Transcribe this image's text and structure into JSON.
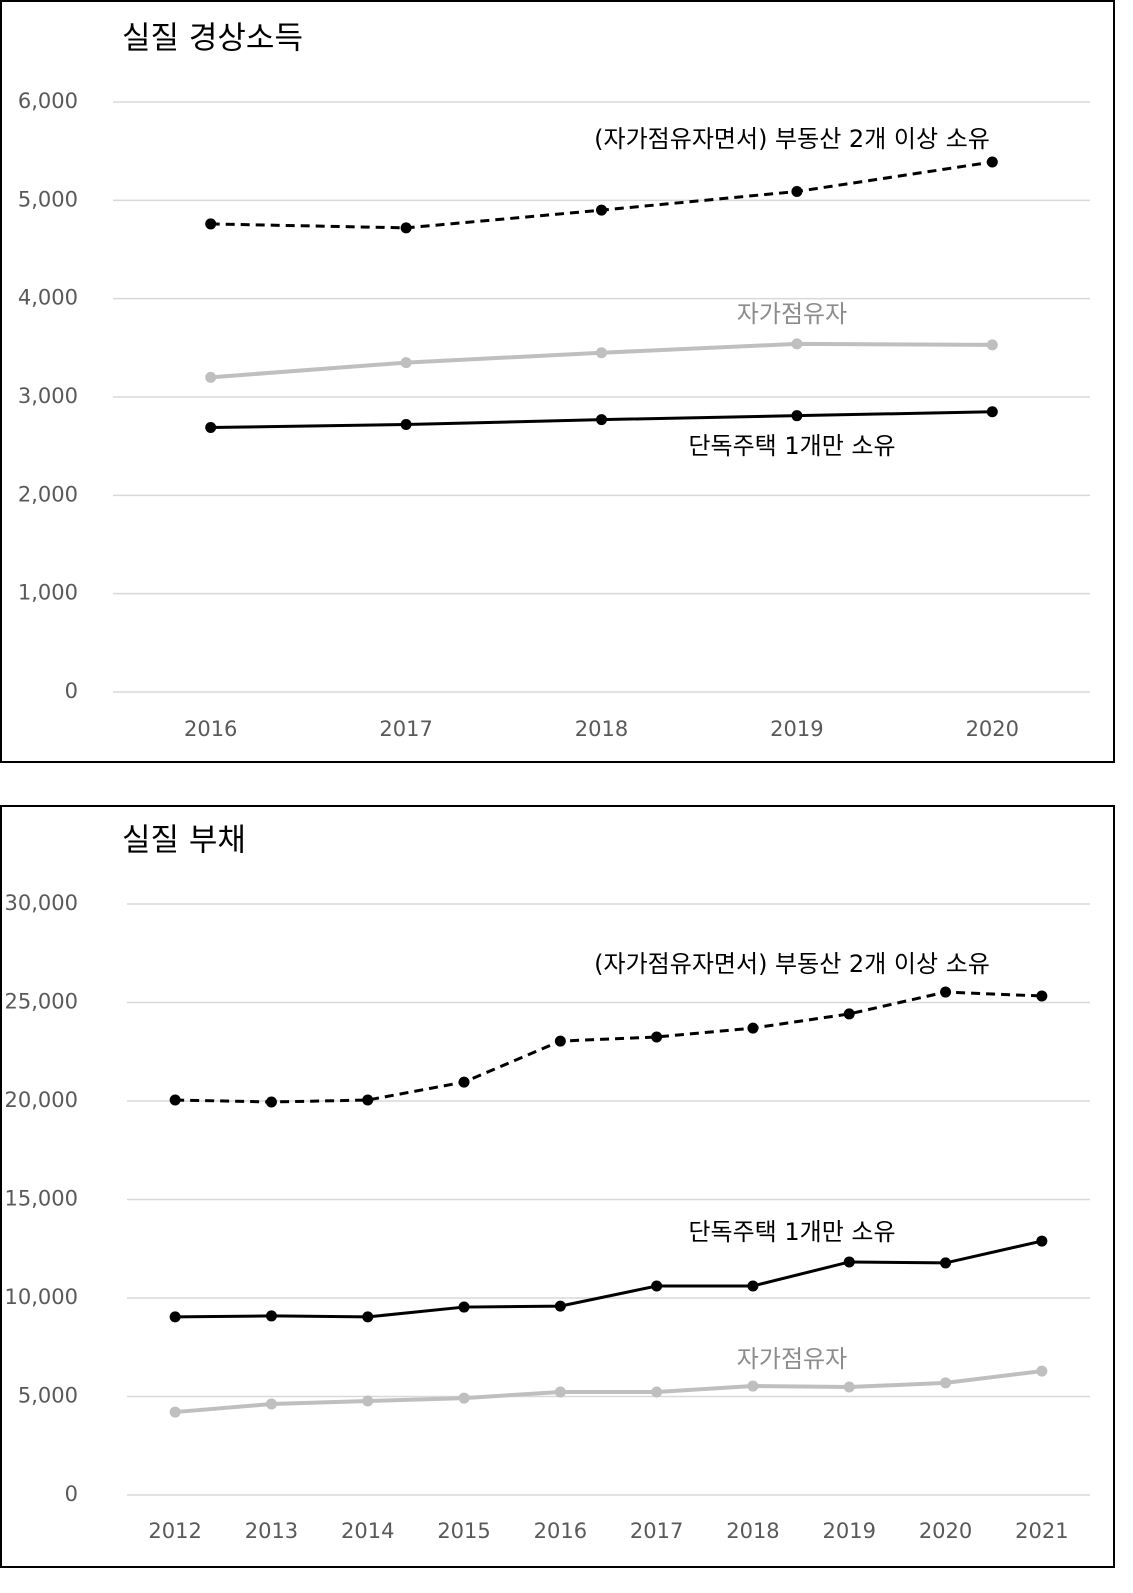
{
  "chart_data": [
    {
      "type": "line",
      "title": "실질 경상소득",
      "categories": [
        "2016",
        "2017",
        "2018",
        "2019",
        "2020"
      ],
      "series": [
        {
          "name": "(자가점유자면서) 부동산 2개 이상 소유",
          "color": "#000000",
          "line_style": "dashed",
          "values": [
            4760,
            4720,
            4900,
            5090,
            5390
          ]
        },
        {
          "name": "자가점유자",
          "color": "#bfbfbf",
          "line_style": "solid",
          "values": [
            3200,
            3350,
            3450,
            3540,
            3530
          ]
        },
        {
          "name": "단독주택 1개만 소유",
          "color": "#000000",
          "line_style": "solid",
          "values": [
            2690,
            2720,
            2770,
            2810,
            2850
          ]
        }
      ],
      "ylim": [
        0,
        6000
      ],
      "yticks": [
        0,
        {
          "value": 1000,
          "label": "1,000"
        },
        {
          "value": 2000,
          "label": "2,000"
        },
        {
          "value": 3000,
          "label": "3,000"
        },
        {
          "value": 4000,
          "label": "4,000"
        },
        {
          "value": 5000,
          "label": "5,000"
        },
        {
          "value": 6000,
          "label": "6,000"
        }
      ],
      "grid": true
    },
    {
      "type": "line",
      "title": "실질 부채",
      "categories": [
        "2012",
        "2013",
        "2014",
        "2015",
        "2016",
        "2017",
        "2018",
        "2019",
        "2020",
        "2021"
      ],
      "series": [
        {
          "name": "(자가점유자면서) 부동산 2개 이상 소유",
          "color": "#000000",
          "line_style": "dashed",
          "values": [
            20050,
            19950,
            20050,
            20960,
            23040,
            23250,
            23700,
            24420,
            25530,
            25330
          ]
        },
        {
          "name": "단독주택 1개만 소유",
          "color": "#000000",
          "line_style": "solid",
          "values": [
            9040,
            9090,
            9040,
            9540,
            9590,
            10610,
            10610,
            11830,
            11780,
            12890
          ]
        },
        {
          "name": "자가점유자",
          "color": "#bfbfbf",
          "line_style": "solid",
          "values": [
            4210,
            4620,
            4770,
            4920,
            5230,
            5230,
            5530,
            5480,
            5690,
            6290
          ]
        }
      ],
      "ylim": [
        0,
        30000
      ],
      "yticks": [
        0,
        {
          "value": 5000,
          "label": "5,000"
        },
        {
          "value": 10000,
          "label": "10,000"
        },
        {
          "value": 15000,
          "label": "15,000"
        },
        {
          "value": 20000,
          "label": "20,000"
        },
        {
          "value": 25000,
          "label": "25,000"
        },
        {
          "value": 30000,
          "label": "30,000"
        }
      ],
      "grid": true
    }
  ]
}
